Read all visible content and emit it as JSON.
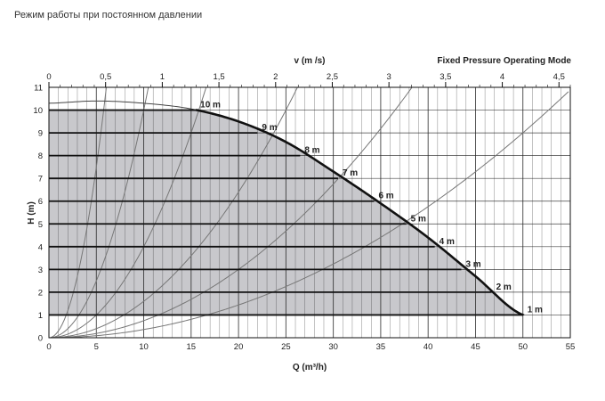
{
  "caption": "Режим работы при постоянном давлении",
  "chart_data": {
    "type": "line",
    "mode_title": "Fixed Pressure Operating Mode",
    "xlabel": "Q (m³/h)",
    "ylabel": "H (m)",
    "top_axis_label": "v (m /s)",
    "xlim": [
      0,
      55
    ],
    "ylim": [
      0,
      11
    ],
    "top_axis_lim": [
      0,
      4.6
    ],
    "x_ticks": [
      "0",
      "5",
      "10",
      "15",
      "20",
      "25",
      "30",
      "35",
      "40",
      "45",
      "50",
      "55"
    ],
    "y_ticks": [
      "0",
      "1",
      "2",
      "3",
      "4",
      "5",
      "6",
      "7",
      "8",
      "9",
      "10",
      "11"
    ],
    "top_ticks": [
      "0",
      "0,5",
      "1",
      "1,5",
      "2",
      "2,5",
      "3",
      "3,5",
      "4",
      "4,5"
    ],
    "grid": true,
    "max_curve": {
      "name": "max",
      "x": [
        0,
        5,
        10,
        15,
        20,
        25,
        30,
        35,
        40,
        45,
        50
      ],
      "y": [
        10.3,
        10.4,
        10.3,
        10.05,
        9.5,
        8.6,
        7.3,
        5.9,
        4.4,
        2.7,
        1.0
      ]
    },
    "levels": [
      {
        "label": "10 m",
        "h": 10,
        "q_end": 15.5
      },
      {
        "label": "9 m",
        "h": 9,
        "q_end": 22.0
      },
      {
        "label": "8 m",
        "h": 8,
        "q_end": 26.5
      },
      {
        "label": "7 m",
        "h": 7,
        "q_end": 30.5
      },
      {
        "label": "6 m",
        "h": 6,
        "q_end": 34.3
      },
      {
        "label": "5 m",
        "h": 5,
        "q_end": 37.7
      },
      {
        "label": "4 m",
        "h": 4,
        "q_end": 40.7
      },
      {
        "label": "3 m",
        "h": 3,
        "q_end": 43.5
      },
      {
        "label": "2 m",
        "h": 2,
        "q_end": 46.7
      },
      {
        "label": "1 m",
        "h": 1,
        "q_end": 50.0
      }
    ],
    "system_curves": [
      {
        "k": 0.3
      },
      {
        "k": 0.1
      },
      {
        "k": 0.04
      },
      {
        "k": 0.016
      },
      {
        "k": 0.0075
      },
      {
        "k": 0.0036
      }
    ],
    "colors": {
      "fill": "#c8c8cc",
      "curve": "#111111",
      "grid": "#222222",
      "system": "#777777"
    }
  }
}
